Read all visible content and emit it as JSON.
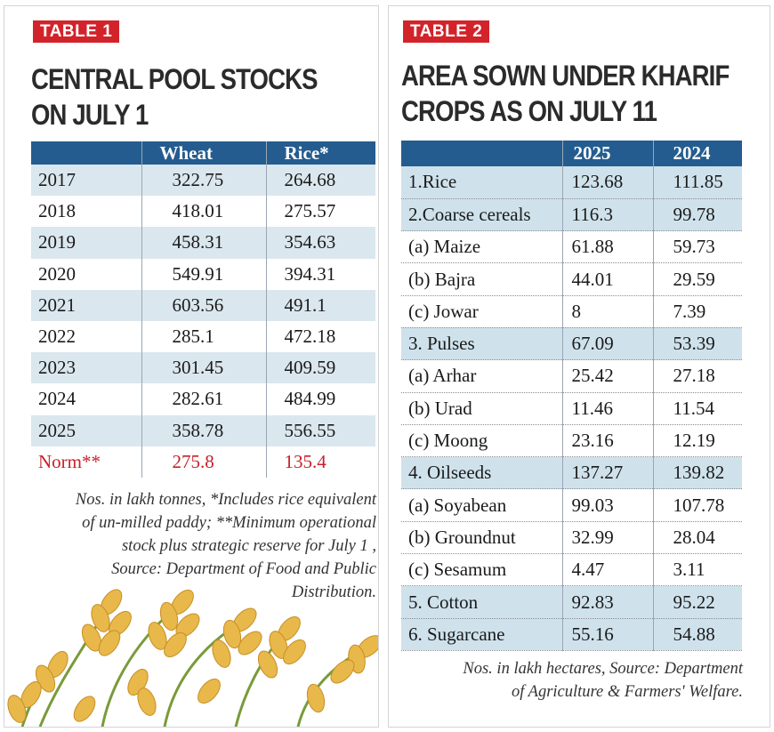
{
  "table1": {
    "badge": "TABLE 1",
    "title_line1": "CENTRAL POOL STOCKS",
    "title_line2": "ON JULY 1",
    "headers": [
      "",
      "Wheat",
      "Rice*"
    ],
    "rows": [
      [
        "2017",
        "322.75",
        "264.68"
      ],
      [
        "2018",
        "418.01",
        "275.57"
      ],
      [
        "2019",
        "458.31",
        "354.63"
      ],
      [
        "2020",
        "549.91",
        "394.31"
      ],
      [
        "2021",
        "603.56",
        "491.1"
      ],
      [
        "2022",
        "285.1",
        "472.18"
      ],
      [
        "2023",
        "301.45",
        "409.59"
      ],
      [
        "2024",
        "282.61",
        "484.99"
      ],
      [
        "2025",
        "358.78",
        "556.55"
      ],
      [
        "Norm**",
        "275.8",
        "135.4"
      ]
    ],
    "note_lines": [
      "Nos. in lakh tonnes, *Includes rice equivalent",
      "of un-milled paddy; **Minimum operational",
      "stock plus strategic reserve for July 1 ,",
      "Source: Department of Food and Public",
      "Distribution."
    ]
  },
  "table2": {
    "badge": "TABLE 2",
    "title_line1": "AREA SOWN UNDER KHARIF",
    "title_line2": "CROPS AS ON JULY 11",
    "headers": [
      "",
      "2025",
      "2024"
    ],
    "rows": [
      [
        "1.Rice",
        "123.68",
        "111.85"
      ],
      [
        "2.Coarse cereals",
        "116.3",
        "99.78"
      ],
      [
        "(a) Maize",
        "61.88",
        "59.73"
      ],
      [
        "(b) Bajra",
        "44.01",
        "29.59"
      ],
      [
        "(c) Jowar",
        "8",
        "7.39"
      ],
      [
        "3. Pulses",
        "67.09",
        "53.39"
      ],
      [
        "(a) Arhar",
        "25.42",
        "27.18"
      ],
      [
        "(b) Urad",
        "11.46",
        "11.54"
      ],
      [
        "(c) Moong",
        "23.16",
        "12.19"
      ],
      [
        "4. Oilseeds",
        "137.27",
        "139.82"
      ],
      [
        "(a) Soyabean",
        "99.03",
        "107.78"
      ],
      [
        "(b) Groundnut",
        "32.99",
        "28.04"
      ],
      [
        "(c) Sesamum",
        "4.47",
        "3.11"
      ],
      [
        "5. Cotton",
        "92.83",
        "95.22"
      ],
      [
        "6. Sugarcane",
        "55.16",
        "54.88"
      ]
    ],
    "note_lines": [
      "Nos. in lakh hectares, Source: Department",
      "of Agriculture & Farmers' Welfare."
    ]
  },
  "colors": {
    "badge": "#d2232a",
    "header": "#245c8f",
    "band_left": "#dbe7ee",
    "band_right": "#cfe2ec",
    "norm": "#c8202a",
    "wheat": "#e8b84a"
  }
}
